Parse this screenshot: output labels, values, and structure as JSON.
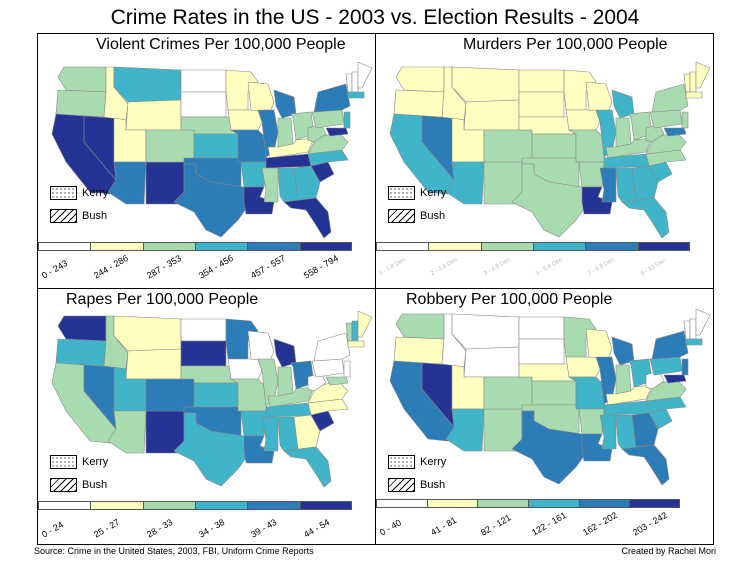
{
  "title": "Crime Rates in the US - 2003 vs. Election Results - 2004",
  "colors": {
    "c0": "#ffffff",
    "c1": "#ffffc0",
    "c2": "#a8dcb0",
    "c3": "#40b4c8",
    "c4": "#2c7cb8",
    "c5": "#253494"
  },
  "state_key": [
    "WA",
    "OR",
    "CA",
    "NV",
    "ID",
    "MT",
    "WY",
    "UT",
    "AZ",
    "NM",
    "CO",
    "ND",
    "SD",
    "NE",
    "KS",
    "OK",
    "TX",
    "MN",
    "IA",
    "MO",
    "AR",
    "LA",
    "WI",
    "IL",
    "MI",
    "IN",
    "OH",
    "KY",
    "TN",
    "MS",
    "AL",
    "GA",
    "FL",
    "SC",
    "NC",
    "VA",
    "WV",
    "PA",
    "NY",
    "VT",
    "NH",
    "ME",
    "MA",
    "NJ",
    "MD"
  ],
  "panels": [
    {
      "title": "Violent Crimes Per 100,000 People",
      "levels": {
        "WA": 2,
        "OR": 2,
        "CA": 5,
        "NV": 5,
        "ID": 1,
        "MT": 3,
        "WY": 1,
        "UT": 1,
        "AZ": 4,
        "NM": 5,
        "CO": 2,
        "ND": 0,
        "SD": 0,
        "NE": 2,
        "KS": 3,
        "OK": 4,
        "TX": 4,
        "MN": 1,
        "IA": 1,
        "MO": 4,
        "AR": 3,
        "LA": 5,
        "WI": 1,
        "IL": 4,
        "MI": 4,
        "IN": 2,
        "OH": 2,
        "KY": 1,
        "TN": 5,
        "MS": 2,
        "AL": 3,
        "GA": 3,
        "FL": 5,
        "SC": 5,
        "NC": 3,
        "VA": 2,
        "WV": 2,
        "PA": 2,
        "NY": 4,
        "VT": 0,
        "NH": 0,
        "ME": 0,
        "MA": 3,
        "NJ": 3,
        "MD": 5
      },
      "legend_labels": [
        "0 - 243",
        "244 - 286",
        "287 - 353",
        "354 - 456",
        "457 - 557",
        "558 - 794"
      ],
      "faint": false
    },
    {
      "title": "Murders Per 100,000 People",
      "levels": {
        "WA": 1,
        "OR": 1,
        "CA": 3,
        "NV": 4,
        "ID": 1,
        "MT": 1,
        "WY": 1,
        "UT": 1,
        "AZ": 3,
        "NM": 2,
        "CO": 2,
        "ND": 1,
        "SD": 1,
        "NE": 1,
        "KS": 2,
        "OK": 2,
        "TX": 2,
        "MN": 1,
        "IA": 1,
        "MO": 2,
        "AR": 2,
        "LA": 5,
        "WI": 1,
        "IL": 3,
        "MI": 3,
        "IN": 2,
        "OH": 2,
        "KY": 2,
        "TN": 3,
        "MS": 4,
        "AL": 3,
        "GA": 3,
        "FL": 3,
        "SC": 3,
        "NC": 2,
        "VA": 2,
        "WV": 2,
        "PA": 2,
        "NY": 2,
        "VT": 1,
        "NH": 1,
        "ME": 1,
        "MA": 1,
        "NJ": 2,
        "MD": 4
      },
      "legend_labels": [
        "1 - 1.8 Den",
        "2 - 2.6 Den",
        "3 - 4.8 Den",
        "5 - 6.6 Den",
        "7 - 8.8 Den",
        "9 - 13 Den"
      ],
      "faint": true
    },
    {
      "title": "Rapes Per 100,000 People",
      "levels": {
        "WA": 5,
        "OR": 3,
        "CA": 2,
        "NV": 4,
        "ID": 2,
        "MT": 1,
        "WY": 1,
        "UT": 3,
        "AZ": 2,
        "NM": 5,
        "CO": 4,
        "ND": 0,
        "SD": 5,
        "NE": 2,
        "KS": 3,
        "OK": 4,
        "TX": 3,
        "MN": 4,
        "IA": 0,
        "MO": 2,
        "AR": 3,
        "LA": 4,
        "WI": 0,
        "IL": 2,
        "MI": 5,
        "IN": 2,
        "OH": 4,
        "KY": 2,
        "TN": 3,
        "MS": 3,
        "AL": 3,
        "GA": 1,
        "FL": 3,
        "SC": 5,
        "NC": 1,
        "VA": 1,
        "WV": 0,
        "PA": 0,
        "NY": 0,
        "VT": 2,
        "NH": 3,
        "ME": 1,
        "MA": 1,
        "NJ": 0,
        "MD": 2
      },
      "legend_labels": [
        "0 - 24",
        "25 - 27",
        "28 - 33",
        "34 - 38",
        "39 - 43",
        "44 - 54"
      ],
      "faint": false
    },
    {
      "title": "Robbery Per 100,000 People",
      "levels": {
        "WA": 2,
        "OR": 1,
        "CA": 4,
        "NV": 5,
        "ID": 0,
        "MT": 0,
        "WY": 0,
        "UT": 1,
        "AZ": 3,
        "NM": 2,
        "CO": 2,
        "ND": 0,
        "SD": 0,
        "NE": 1,
        "KS": 2,
        "OK": 2,
        "TX": 4,
        "MN": 2,
        "IA": 1,
        "MO": 3,
        "AR": 2,
        "LA": 4,
        "WI": 1,
        "IL": 4,
        "MI": 4,
        "IN": 2,
        "OH": 3,
        "KY": 1,
        "TN": 3,
        "MS": 3,
        "AL": 3,
        "GA": 4,
        "FL": 4,
        "SC": 3,
        "NC": 3,
        "VA": 2,
        "WV": 0,
        "PA": 3,
        "NY": 4,
        "VT": 0,
        "NH": 0,
        "ME": 0,
        "MA": 3,
        "NJ": 4,
        "MD": 5
      },
      "legend_labels": [
        "0 - 40",
        "41 - 81",
        "82 - 121",
        "122 - 161",
        "162 - 202",
        "203 - 242"
      ],
      "faint": false
    }
  ],
  "key": {
    "kerry": "Kerry",
    "bush": "Bush"
  },
  "source": "Source: Crime in the United States, 2003, FBI, Uniform Crime Reports",
  "credit": "Created by Rachel Mori"
}
